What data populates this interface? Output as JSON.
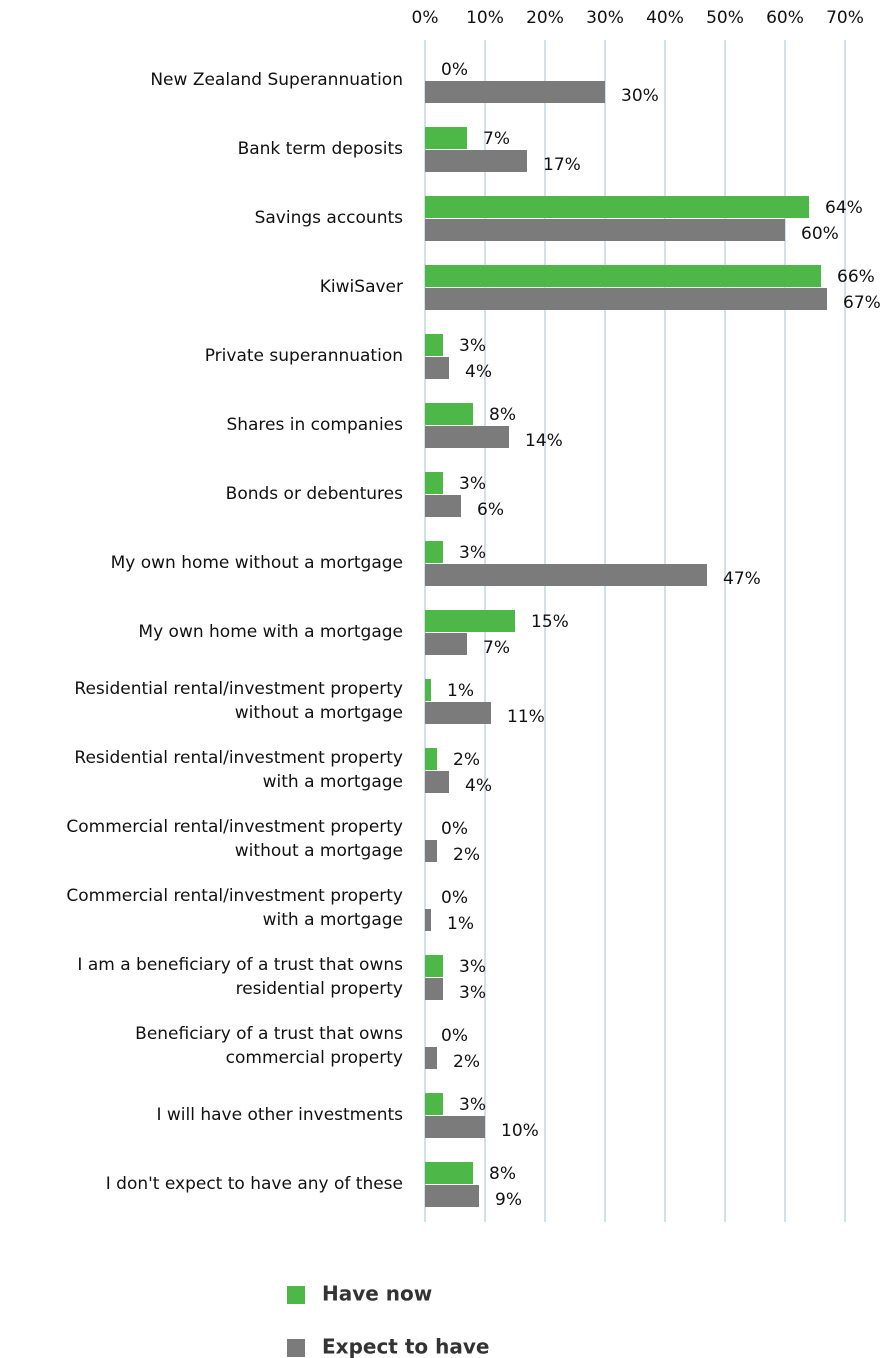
{
  "chart_data": {
    "type": "hbar",
    "categories": [
      "New Zealand Superannuation",
      "Bank term deposits",
      "Savings accounts",
      "KiwiSaver",
      "Private superannuation",
      "Shares in companies",
      "Bonds or debentures",
      "My own home without a mortgage",
      "My own home with a mortgage",
      "Residential rental/investment property\nwithout a mortgage",
      "Residential rental/investment property\nwith a mortgage",
      "Commercial rental/investment property\nwithout a mortgage",
      "Commercial rental/investment property\nwith a mortgage",
      "I am a beneficiary of a trust that owns\nresidential property",
      "Beneficiary of a trust that owns\ncommercial property",
      "I will have other investments",
      "I don't expect to have any of these"
    ],
    "series": [
      {
        "name": "Have now",
        "color": "#4db848",
        "label_color": "#5cb85c",
        "values": [
          0,
          7,
          64,
          66,
          3,
          8,
          3,
          3,
          15,
          1,
          2,
          0,
          0,
          3,
          0,
          3,
          8
        ],
        "value_labels": [
          "0%",
          "7%",
          "64%",
          "66%",
          "3%",
          "8%",
          "3%",
          "3%",
          "15%",
          "1%",
          "2%",
          "0%",
          "0%",
          "3%",
          "0%",
          "3%",
          "8%"
        ]
      },
      {
        "name": "Expect to have",
        "color": "#7b7b7b",
        "label_color": "#111111",
        "values": [
          30,
          17,
          60,
          67,
          4,
          14,
          6,
          47,
          7,
          11,
          4,
          2,
          1,
          3,
          2,
          10,
          9
        ],
        "value_labels": [
          "30%",
          "17%",
          "60%",
          "67%",
          "4%",
          "14%",
          "6%",
          "47%",
          "7%",
          "11%",
          "4%",
          "2%",
          "1%",
          "3%",
          "2%",
          "10%",
          "9%"
        ]
      }
    ],
    "xlim": [
      0,
      70
    ],
    "xticks": [
      {
        "value": 0,
        "label": "0%"
      },
      {
        "value": 10,
        "label": "10%"
      },
      {
        "value": 20,
        "label": "20%"
      },
      {
        "value": 30,
        "label": "30%"
      },
      {
        "value": 40,
        "label": "40%"
      },
      {
        "value": 50,
        "label": "50%"
      },
      {
        "value": 60,
        "label": "60%"
      },
      {
        "value": 70,
        "label": "70%"
      }
    ],
    "grid": true,
    "grid_color": "#cfe0ef",
    "legend": "bottom"
  }
}
